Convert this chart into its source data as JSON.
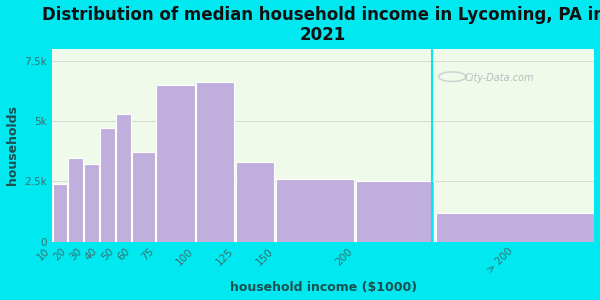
{
  "title": "Distribution of median household income in Lycoming, PA in\n2021",
  "xlabel": "household income ($1000)",
  "ylabel": "households",
  "background_outer": "#00e8f0",
  "bar_color": "#c0aedd",
  "bar_edge_color": "#ffffff",
  "bar_lefts": [
    10,
    20,
    30,
    40,
    50,
    60,
    75,
    100,
    125,
    150,
    200,
    250
  ],
  "bar_widths": [
    10,
    10,
    10,
    10,
    10,
    15,
    25,
    25,
    25,
    50,
    50,
    100
  ],
  "values": [
    2400,
    3450,
    3200,
    4700,
    5300,
    3700,
    6500,
    6600,
    3300,
    2600,
    2500,
    1200
  ],
  "xtick_positions": [
    10,
    20,
    30,
    40,
    50,
    60,
    75,
    100,
    125,
    150,
    200,
    300
  ],
  "xtick_labels": [
    "10",
    "20",
    "30",
    "40",
    "50",
    "60",
    "75",
    "100",
    "125",
    "150",
    "200",
    "> 200"
  ],
  "ylim": [
    0,
    8000
  ],
  "yticks": [
    0,
    2500,
    5000,
    7500
  ],
  "ytick_labels": [
    "0",
    "2.5k",
    "5k",
    "7.5k"
  ],
  "plot_bg_color": "#f0faea",
  "watermark_text": "City-Data.com",
  "title_fontsize": 12,
  "axis_label_fontsize": 9,
  "tick_fontsize": 7.5
}
